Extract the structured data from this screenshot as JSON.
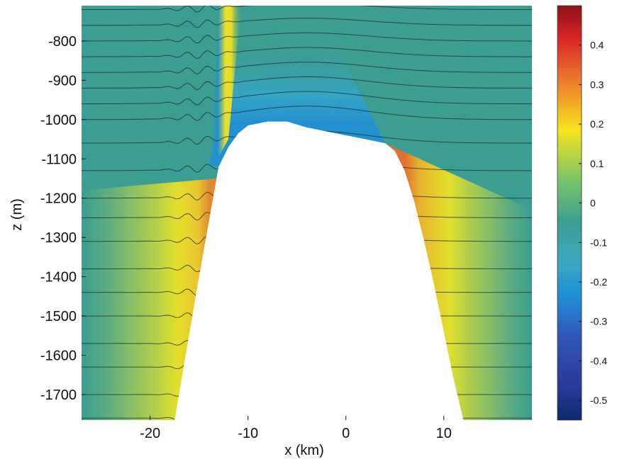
{
  "chart_data": {
    "type": "heatmap",
    "title": "",
    "xlabel": "x (km)",
    "ylabel": "z (m)",
    "xlim": [
      -27,
      19
    ],
    "ylim": [
      -1765,
      -710
    ],
    "x_ticks": [
      -20,
      -10,
      0,
      10
    ],
    "x_tick_labels": [
      "-20",
      "-10",
      "0",
      "10"
    ],
    "y_ticks": [
      -800,
      -900,
      -1000,
      -1100,
      -1200,
      -1300,
      -1400,
      -1500,
      -1600,
      -1700
    ],
    "y_tick_labels": [
      "-800",
      "-900",
      "-1000",
      "-1100",
      "-1200",
      "-1300",
      "-1400",
      "-1500",
      "-1600",
      "-1700"
    ],
    "colorbar": {
      "range": [
        -0.55,
        0.5
      ],
      "ticks": [
        0.4,
        0.3,
        0.2,
        0.1,
        0,
        -0.1,
        -0.2,
        -0.3,
        -0.4,
        -0.5
      ],
      "tick_labels": [
        "0.4",
        "0.3",
        "0.2",
        "0.1",
        "0",
        "-0.1",
        "-0.2",
        "-0.3",
        "-0.4",
        "-0.5"
      ],
      "colormap": "jet",
      "placement": "right"
    },
    "seamount_topography": {
      "x": [
        -17.5,
        -15,
        -13,
        -12,
        -11,
        -10,
        -8,
        -6,
        -4,
        -2,
        0,
        2,
        4,
        5,
        6,
        7,
        8,
        9,
        10,
        11,
        12
      ],
      "z": [
        -1765,
        -1400,
        -1120,
        -1070,
        -1035,
        -1015,
        -1005,
        -1005,
        -1020,
        -1030,
        -1040,
        -1050,
        -1060,
        -1080,
        -1130,
        -1210,
        -1310,
        -1420,
        -1540,
        -1660,
        -1765
      ]
    },
    "contour_levels_z": [
      -720,
      -760,
      -800,
      -840,
      -880,
      -920,
      -960,
      -1000,
      -1060,
      -1130,
      -1200,
      -1250,
      -1310,
      -1380,
      -1440,
      -1500,
      -1570,
      -1630,
      -1700,
      -1760
    ],
    "colors": {
      "background_field": "#3c9e92",
      "contour_line": "#1a2a2a",
      "seamount_fill": "#ffffff"
    }
  }
}
